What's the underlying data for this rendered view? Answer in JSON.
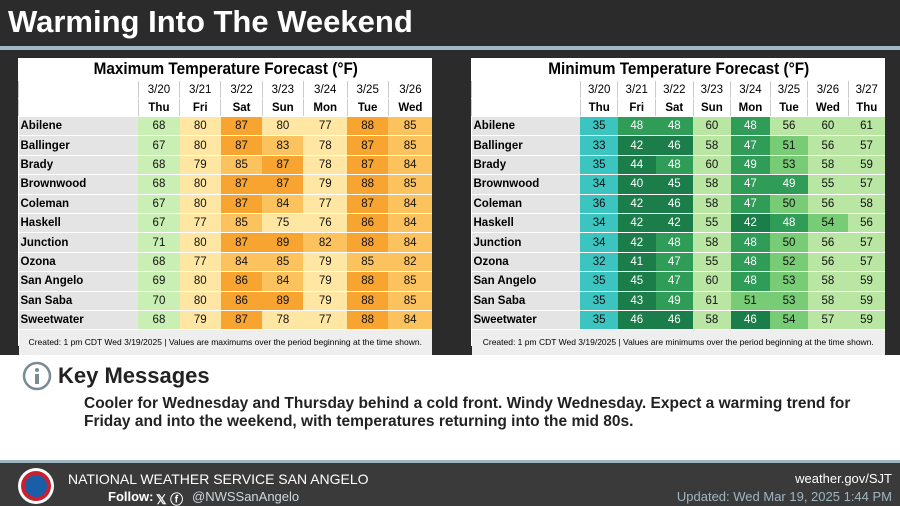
{
  "header": {
    "title": "Warming Into The Weekend"
  },
  "tables": [
    {
      "title": "Maximum Temperature Forecast (°F)",
      "dates": [
        "3/20",
        "3/21",
        "3/22",
        "3/23",
        "3/24",
        "3/25",
        "3/26"
      ],
      "days": [
        "Thu",
        "Fri",
        "Sat",
        "Sun",
        "Mon",
        "Tue",
        "Wed"
      ],
      "rows": [
        {
          "name": "Abilene",
          "values": [
            68,
            80,
            87,
            80,
            77,
            88,
            85
          ]
        },
        {
          "name": "Ballinger",
          "values": [
            67,
            80,
            87,
            83,
            78,
            87,
            85
          ]
        },
        {
          "name": "Brady",
          "values": [
            68,
            79,
            85,
            87,
            78,
            87,
            84
          ]
        },
        {
          "name": "Brownwood",
          "values": [
            68,
            80,
            87,
            87,
            79,
            88,
            85
          ]
        },
        {
          "name": "Coleman",
          "values": [
            67,
            80,
            87,
            84,
            77,
            87,
            84
          ]
        },
        {
          "name": "Haskell",
          "values": [
            67,
            77,
            85,
            75,
            76,
            86,
            84
          ]
        },
        {
          "name": "Junction",
          "values": [
            71,
            80,
            87,
            89,
            82,
            88,
            84
          ]
        },
        {
          "name": "Ozona",
          "values": [
            68,
            77,
            84,
            85,
            79,
            85,
            82
          ]
        },
        {
          "name": "San Angelo",
          "values": [
            69,
            80,
            86,
            84,
            79,
            88,
            85
          ]
        },
        {
          "name": "San Saba",
          "values": [
            70,
            80,
            86,
            89,
            79,
            88,
            85
          ]
        },
        {
          "name": "Sweetwater",
          "values": [
            68,
            79,
            87,
            78,
            77,
            88,
            84
          ]
        }
      ],
      "note": "Created: 1 pm CDT Wed 3/19/2025 | Values are maximums over the period beginning at the time shown."
    },
    {
      "title": "Minimum Temperature Forecast (°F)",
      "dates": [
        "3/20",
        "3/21",
        "3/22",
        "3/23",
        "3/24",
        "3/25",
        "3/26",
        "3/27"
      ],
      "days": [
        "Thu",
        "Fri",
        "Sat",
        "Sun",
        "Mon",
        "Tue",
        "Wed",
        "Thu"
      ],
      "rows": [
        {
          "name": "Abilene",
          "values": [
            35,
            48,
            48,
            60,
            48,
            56,
            60,
            61
          ]
        },
        {
          "name": "Ballinger",
          "values": [
            33,
            42,
            46,
            58,
            47,
            51,
            56,
            57
          ]
        },
        {
          "name": "Brady",
          "values": [
            35,
            44,
            48,
            60,
            49,
            53,
            58,
            59
          ]
        },
        {
          "name": "Brownwood",
          "values": [
            34,
            40,
            45,
            58,
            47,
            49,
            55,
            57
          ]
        },
        {
          "name": "Coleman",
          "values": [
            36,
            42,
            46,
            58,
            47,
            50,
            56,
            58
          ]
        },
        {
          "name": "Haskell",
          "values": [
            34,
            42,
            42,
            55,
            42,
            48,
            54,
            56
          ]
        },
        {
          "name": "Junction",
          "values": [
            34,
            42,
            48,
            58,
            48,
            50,
            56,
            57
          ]
        },
        {
          "name": "Ozona",
          "values": [
            32,
            41,
            47,
            55,
            48,
            52,
            56,
            57
          ]
        },
        {
          "name": "San Angelo",
          "values": [
            35,
            45,
            47,
            60,
            48,
            53,
            58,
            59
          ]
        },
        {
          "name": "San Saba",
          "values": [
            35,
            43,
            49,
            61,
            51,
            53,
            58,
            59
          ]
        },
        {
          "name": "Sweetwater",
          "values": [
            35,
            46,
            46,
            58,
            46,
            54,
            57,
            59
          ]
        }
      ],
      "note": "Created: 1 pm CDT Wed 3/19/2025 | Values are minimums over the period beginning at the time shown."
    }
  ],
  "key_messages": {
    "heading": "Key Messages",
    "text": "Cooler for Wednesday and Thursday behind a cold front. Windy Wednesday. Expect a warming trend for Friday and into the weekend, with temperatures returning into the mid 80s."
  },
  "footer": {
    "office": "NATIONAL WEATHER SERVICE SAN ANGELO",
    "follow": "Follow:",
    "handle": "@NWSSanAngelo",
    "website": "weather.gov/SJT",
    "updated": "Updated: Wed Mar 19, 2025 1:44 PM"
  }
}
